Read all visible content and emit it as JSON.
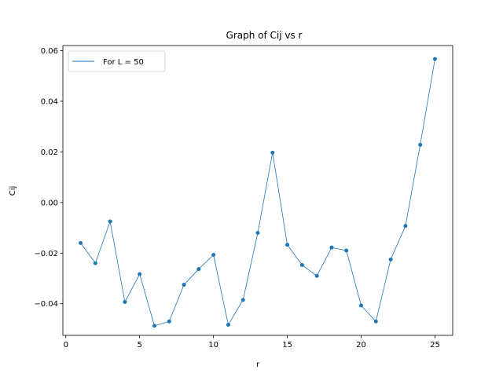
{
  "chart_data": {
    "type": "line",
    "title": "Graph of Cij vs r",
    "xlabel": "r",
    "ylabel": "Cij",
    "xlim": [
      -0.2,
      26.2
    ],
    "ylim": [
      -0.0525,
      0.062
    ],
    "xticks": [
      0,
      5,
      10,
      15,
      20,
      25
    ],
    "yticks": [
      -0.04,
      -0.02,
      0.0,
      0.02,
      0.04,
      0.06
    ],
    "xtick_labels": [
      "0",
      "5",
      "10",
      "15",
      "20",
      "25"
    ],
    "ytick_labels": [
      "−0.04",
      "−0.02",
      "0.00",
      "0.02",
      "0.04",
      "0.06"
    ],
    "grid": false,
    "legend_position": "upper-left",
    "series": [
      {
        "name": "For L = 50",
        "color": "#1f77b4",
        "marker": "dot",
        "x": [
          1,
          2,
          3,
          4,
          5,
          6,
          7,
          8,
          9,
          10,
          11,
          12,
          13,
          14,
          15,
          16,
          17,
          18,
          19,
          20,
          21,
          22,
          23,
          24,
          25
        ],
        "y": [
          -0.016,
          -0.024,
          -0.0075,
          -0.0393,
          -0.0283,
          -0.0487,
          -0.047,
          -0.0325,
          -0.0263,
          -0.0207,
          -0.0483,
          -0.0385,
          -0.012,
          0.0197,
          -0.0167,
          -0.0247,
          -0.029,
          -0.0178,
          -0.019,
          -0.0407,
          -0.047,
          -0.0225,
          -0.0093,
          0.0228,
          0.0567
        ]
      }
    ]
  }
}
